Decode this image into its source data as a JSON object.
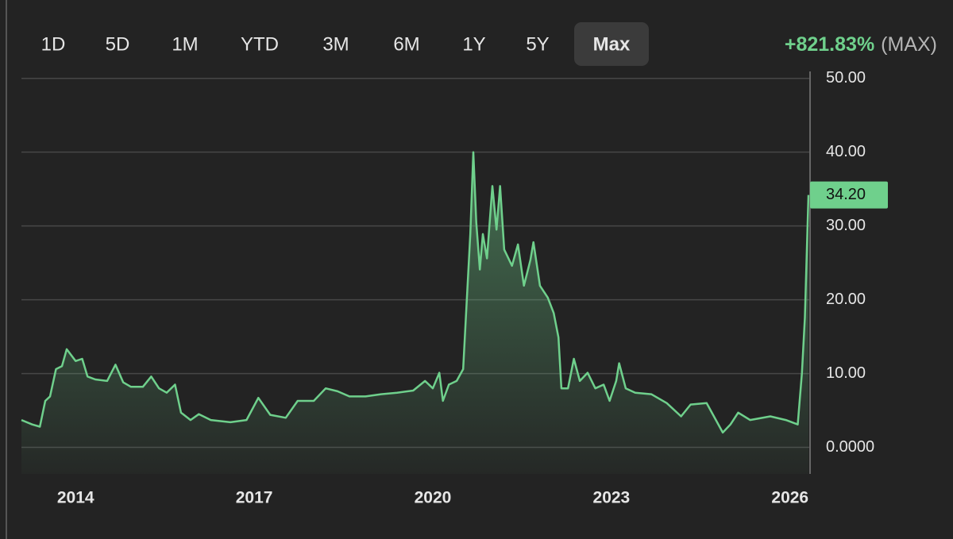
{
  "toolbar": {
    "range_buttons": [
      "1D",
      "5D",
      "1M",
      "YTD",
      "3M",
      "6M",
      "1Y",
      "5Y",
      "Max"
    ],
    "active_range": "Max",
    "change": "+821.83%",
    "change_period": "(MAX)"
  },
  "chart_data": {
    "type": "area",
    "color": "#6fd08c",
    "x": [
      2013.09,
      2013.27,
      2013.4,
      2013.49,
      2013.57,
      2013.67,
      2013.77,
      2013.85,
      2014.0,
      2014.11,
      2014.2,
      2014.33,
      2014.53,
      2014.67,
      2014.8,
      2014.93,
      2015.13,
      2015.27,
      2015.4,
      2015.53,
      2015.67,
      2015.77,
      2015.93,
      2016.07,
      2016.27,
      2016.6,
      2016.87,
      2017.07,
      2017.27,
      2017.53,
      2017.73,
      2018.0,
      2018.2,
      2018.4,
      2018.6,
      2018.87,
      2019.13,
      2019.4,
      2019.67,
      2019.87,
      2020.0,
      2020.11,
      2020.17,
      2020.27,
      2020.4,
      2020.51,
      2020.57,
      2020.63,
      2020.68,
      2020.73,
      2020.79,
      2020.84,
      2020.91,
      2021.0,
      2021.07,
      2021.13,
      2021.2,
      2021.33,
      2021.43,
      2021.53,
      2021.64,
      2021.69,
      2021.8,
      2021.93,
      2022.03,
      2022.11,
      2022.16,
      2022.27,
      2022.37,
      2022.47,
      2022.6,
      2022.73,
      2022.87,
      2022.97,
      2023.08,
      2023.13,
      2023.24,
      2023.4,
      2023.67,
      2023.93,
      2024.17,
      2024.33,
      2024.6,
      2024.87,
      2025.0,
      2025.13,
      2025.33,
      2025.67,
      2025.93,
      2026.13,
      2026.2,
      2026.25,
      2026.31
    ],
    "values": [
      3.7,
      3.1,
      2.8,
      6.3,
      6.9,
      10.6,
      11.0,
      13.3,
      11.7,
      12.0,
      9.6,
      9.2,
      9.0,
      11.2,
      8.8,
      8.2,
      8.2,
      9.6,
      8.0,
      7.4,
      8.5,
      4.7,
      3.7,
      4.5,
      3.7,
      3.4,
      3.7,
      6.7,
      4.4,
      4.0,
      6.3,
      6.3,
      8.0,
      7.6,
      6.9,
      6.9,
      7.2,
      7.4,
      7.7,
      9.0,
      8.0,
      10.1,
      6.3,
      8.5,
      9.0,
      10.6,
      19.8,
      28.9,
      40.0,
      30.5,
      24.1,
      28.9,
      25.6,
      35.4,
      29.5,
      35.4,
      26.8,
      24.6,
      27.5,
      21.9,
      25.4,
      27.8,
      21.9,
      20.3,
      18.2,
      14.9,
      8.0,
      8.0,
      12.0,
      9.0,
      10.1,
      8.0,
      8.5,
      6.3,
      9.0,
      11.4,
      8.0,
      7.4,
      7.2,
      6.0,
      4.2,
      5.8,
      6.0,
      2.0,
      3.1,
      4.7,
      3.7,
      4.2,
      3.7,
      3.1,
      10.1,
      17.6,
      34.2
    ],
    "last_price": {
      "value": 34.2,
      "label": "34.20"
    },
    "xlim": [
      2013.09,
      2026.31
    ],
    "xticks": [
      2014,
      2017,
      2020,
      2023,
      2026
    ],
    "ylim": [
      -3.6,
      50.4
    ],
    "yticks": [
      {
        "value": 0,
        "label": "0.0000"
      },
      {
        "value": 10,
        "label": "10.00"
      },
      {
        "value": 20,
        "label": "20.00"
      },
      {
        "value": 30,
        "label": "30.00"
      },
      {
        "value": 40,
        "label": "40.00"
      },
      {
        "value": 50,
        "label": "50.00"
      }
    ],
    "grid": true
  }
}
